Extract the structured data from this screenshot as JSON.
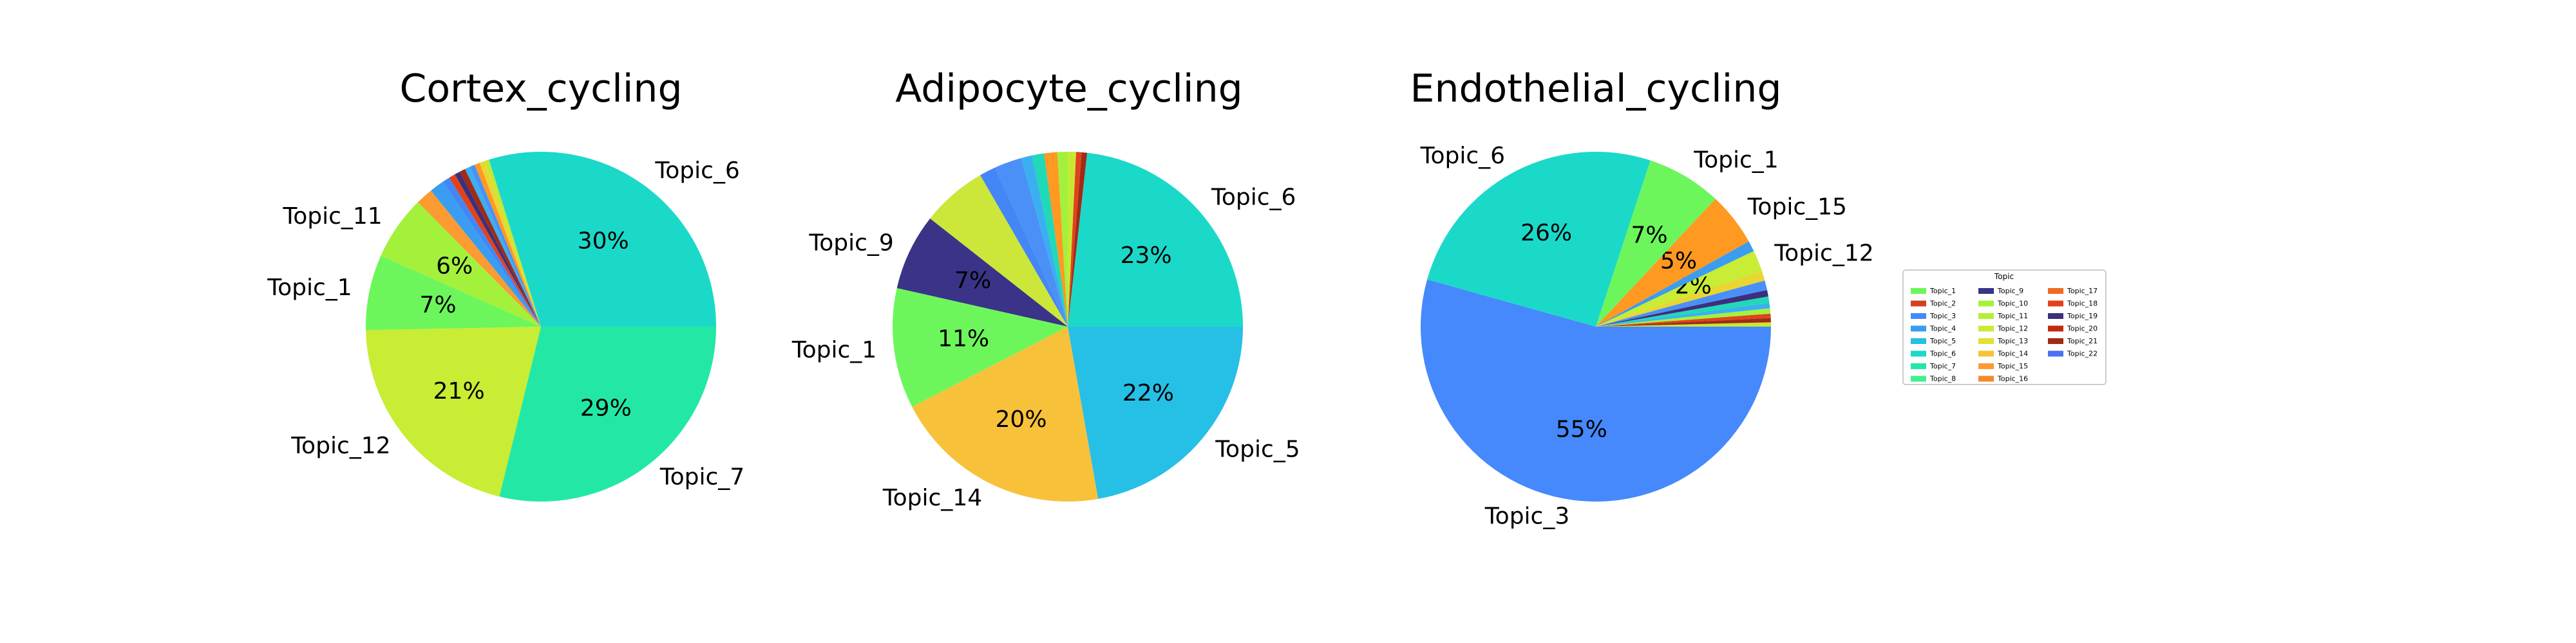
{
  "chart_data": [
    {
      "type": "pie",
      "title": "Cortex_cycling",
      "slices": [
        {
          "label": "Topic_6",
          "value": 30,
          "pct_text": "30%",
          "color": "#1bd9c9"
        },
        {
          "label": "",
          "value": 0.45,
          "pct_text": "",
          "color": "#c7e832"
        },
        {
          "label": "",
          "value": 0.45,
          "pct_text": "",
          "color": "#e8d632"
        },
        {
          "label": "",
          "value": 0.5,
          "pct_text": "",
          "color": "#ff9922"
        },
        {
          "label": "",
          "value": 0.45,
          "pct_text": "",
          "color": "#4a90f7"
        },
        {
          "label": "",
          "value": 0.5,
          "pct_text": "",
          "color": "#3ab0f0"
        },
        {
          "label": "",
          "value": 0.55,
          "pct_text": "",
          "color": "#9f2b17"
        },
        {
          "label": "",
          "value": 0.5,
          "pct_text": "",
          "color": "#3c2f7d"
        },
        {
          "label": "",
          "value": 0.6,
          "pct_text": "",
          "color": "#e0431b"
        },
        {
          "label": "",
          "value": 0.7,
          "pct_text": "",
          "color": "#4486f5"
        },
        {
          "label": "",
          "value": 1.35,
          "pct_text": "",
          "color": "#3a9df0"
        },
        {
          "label": "",
          "value": 1.6,
          "pct_text": "",
          "color": "#fb9b32"
        },
        {
          "label": "Topic_11",
          "value": 6,
          "pct_text": "6%",
          "color": "#a4f13c"
        },
        {
          "label": "Topic_1",
          "value": 7,
          "pct_text": "7%",
          "color": "#6cf65c"
        },
        {
          "label": "Topic_12",
          "value": 21,
          "pct_text": "21%",
          "color": "#c9ec34"
        },
        {
          "label": "Topic_7",
          "value": 29,
          "pct_text": "29%",
          "color": "#23e8a5"
        }
      ]
    },
    {
      "type": "pie",
      "title": "Adipocyte_cycling",
      "slices": [
        {
          "label": "Topic_6",
          "value": 23,
          "pct_text": "23%",
          "color": "#1bd9c9"
        },
        {
          "label": "",
          "value": 0.5,
          "pct_text": "",
          "color": "#9f2b17"
        },
        {
          "label": "",
          "value": 0.5,
          "pct_text": "",
          "color": "#e0431b"
        },
        {
          "label": "",
          "value": 0.7,
          "pct_text": "",
          "color": "#c7e832"
        },
        {
          "label": "",
          "value": 1.0,
          "pct_text": "",
          "color": "#a4f13c"
        },
        {
          "label": "",
          "value": 1.2,
          "pct_text": "",
          "color": "#ff9922"
        },
        {
          "label": "",
          "value": 1.1,
          "pct_text": "",
          "color": "#1fd9b7"
        },
        {
          "label": "",
          "value": 1.0,
          "pct_text": "",
          "color": "#3ab0f0"
        },
        {
          "label": "",
          "value": 2.5,
          "pct_text": "",
          "color": "#4a90f7"
        },
        {
          "label": "",
          "value": 1.5,
          "pct_text": "",
          "color": "#4486f5"
        },
        {
          "label": "",
          "value": 6.0,
          "pct_text": "",
          "color": "#cde63a"
        },
        {
          "label": "Topic_9",
          "value": 7,
          "pct_text": "7%",
          "color": "#3a3387"
        },
        {
          "label": "Topic_1",
          "value": 11,
          "pct_text": "11%",
          "color": "#6cf65c"
        },
        {
          "label": "Topic_14",
          "value": 20,
          "pct_text": "20%",
          "color": "#f7c13a"
        },
        {
          "label": "Topic_5",
          "value": 22,
          "pct_text": "22%",
          "color": "#26bfe6"
        }
      ]
    },
    {
      "type": "pie",
      "title": "Endothelial_cycling",
      "slices": [
        {
          "label": "",
          "value": 0.4,
          "pct_text": "",
          "color": "#c7e832"
        },
        {
          "label": "",
          "value": 0.4,
          "pct_text": "",
          "color": "#9f2b17"
        },
        {
          "label": "",
          "value": 0.4,
          "pct_text": "",
          "color": "#e0431b"
        },
        {
          "label": "",
          "value": 0.5,
          "pct_text": "",
          "color": "#a4f13c"
        },
        {
          "label": "",
          "value": 0.5,
          "pct_text": "",
          "color": "#3ab0f0"
        },
        {
          "label": "",
          "value": 0.6,
          "pct_text": "",
          "color": "#1fd9b7"
        },
        {
          "label": "",
          "value": 0.6,
          "pct_text": "",
          "color": "#3c2f7d"
        },
        {
          "label": "",
          "value": 0.9,
          "pct_text": "",
          "color": "#4a90f7"
        },
        {
          "label": "",
          "value": 0.9,
          "pct_text": "",
          "color": "#e8d632"
        },
        {
          "label": "Topic_12",
          "value": 2,
          "pct_text": "2%",
          "color": "#c9ec34"
        },
        {
          "label": "",
          "value": 1.0,
          "pct_text": "",
          "color": "#3a9df0"
        },
        {
          "label": "Topic_15",
          "value": 5,
          "pct_text": "5%",
          "color": "#ff9922"
        },
        {
          "label": "Topic_1",
          "value": 7,
          "pct_text": "7%",
          "color": "#6cf65c"
        },
        {
          "label": "Topic_6",
          "value": 26,
          "pct_text": "26%",
          "color": "#1bd9c9"
        },
        {
          "label": "Topic_3",
          "value": 55,
          "pct_text": "55%",
          "color": "#4689fc"
        }
      ]
    }
  ],
  "legend": {
    "title": "Topic",
    "items": [
      {
        "label": "Topic_1",
        "color": "#6cf65c"
      },
      {
        "label": "Topic_2",
        "color": "#d3411e"
      },
      {
        "label": "Topic_3",
        "color": "#4689fc"
      },
      {
        "label": "Topic_4",
        "color": "#3a9df0"
      },
      {
        "label": "Topic_5",
        "color": "#26bfe6"
      },
      {
        "label": "Topic_6",
        "color": "#1bd9c9"
      },
      {
        "label": "Topic_7",
        "color": "#23e8a5"
      },
      {
        "label": "Topic_8",
        "color": "#3ff090"
      },
      {
        "label": "Topic_9",
        "color": "#3a3387"
      },
      {
        "label": "Topic_10",
        "color": "#a4f13c"
      },
      {
        "label": "Topic_11",
        "color": "#b4f034"
      },
      {
        "label": "Topic_12",
        "color": "#c9ec34"
      },
      {
        "label": "Topic_13",
        "color": "#e0e234"
      },
      {
        "label": "Topic_14",
        "color": "#f7c13a"
      },
      {
        "label": "Topic_15",
        "color": "#fb9b32"
      },
      {
        "label": "Topic_16",
        "color": "#f5892a"
      },
      {
        "label": "Topic_17",
        "color": "#ef6a1f"
      },
      {
        "label": "Topic_18",
        "color": "#e0431b"
      },
      {
        "label": "Topic_19",
        "color": "#3c2f7d"
      },
      {
        "label": "Topic_20",
        "color": "#c22a10"
      },
      {
        "label": "Topic_21",
        "color": "#9f2b17"
      },
      {
        "label": "Topic_22",
        "color": "#4a72f0"
      }
    ]
  }
}
